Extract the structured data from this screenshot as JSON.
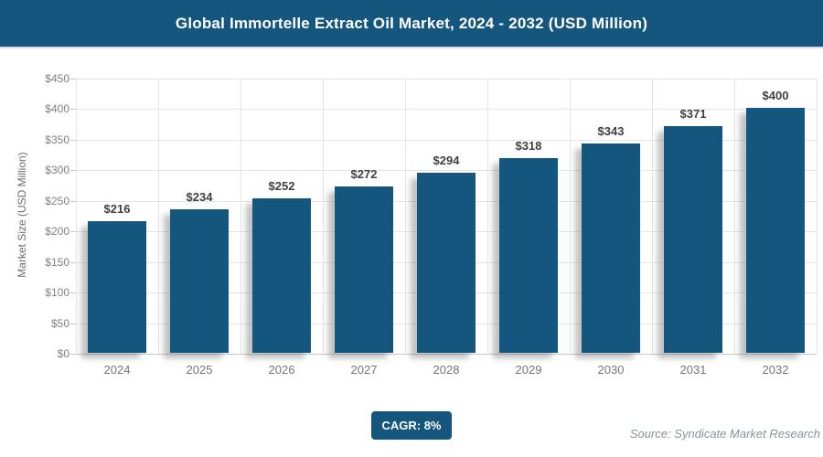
{
  "header": {
    "title": "Global Immortelle Extract Oil Market, 2024 - 2032 (USD Million)"
  },
  "colors": {
    "primary": "#15567e",
    "grid": "#e4e4e4",
    "axis": "#c6c6c6",
    "axis_text": "#808080",
    "value_text": "#404040",
    "source_text": "#8a9298"
  },
  "chart_data": {
    "type": "bar",
    "title": "Global Immortelle Extract Oil Market, 2024 - 2032 (USD Million)",
    "categories": [
      "2024",
      "2025",
      "2026",
      "2027",
      "2028",
      "2029",
      "2030",
      "2031",
      "2032"
    ],
    "values": [
      216,
      234,
      252,
      272,
      294,
      318,
      343,
      371,
      400
    ],
    "value_labels": [
      "$216",
      "$234",
      "$252",
      "$272",
      "$294",
      "$318",
      "$343",
      "$371",
      "$400"
    ],
    "xlabel": "",
    "ylabel": "Market Size (USD Million)",
    "ylim": [
      0,
      450
    ],
    "ytick_step": 50,
    "yticks_top_to_bottom": [
      "$450",
      "$400",
      "$350",
      "$300",
      "$250",
      "$200",
      "$150",
      "$100",
      "$50",
      "$0"
    ],
    "grid": "on",
    "legend": "none",
    "bar_color": "#15567e"
  },
  "footer": {
    "cagr_label": "CAGR: 8%",
    "source": "Source: Syndicate Market Research"
  }
}
